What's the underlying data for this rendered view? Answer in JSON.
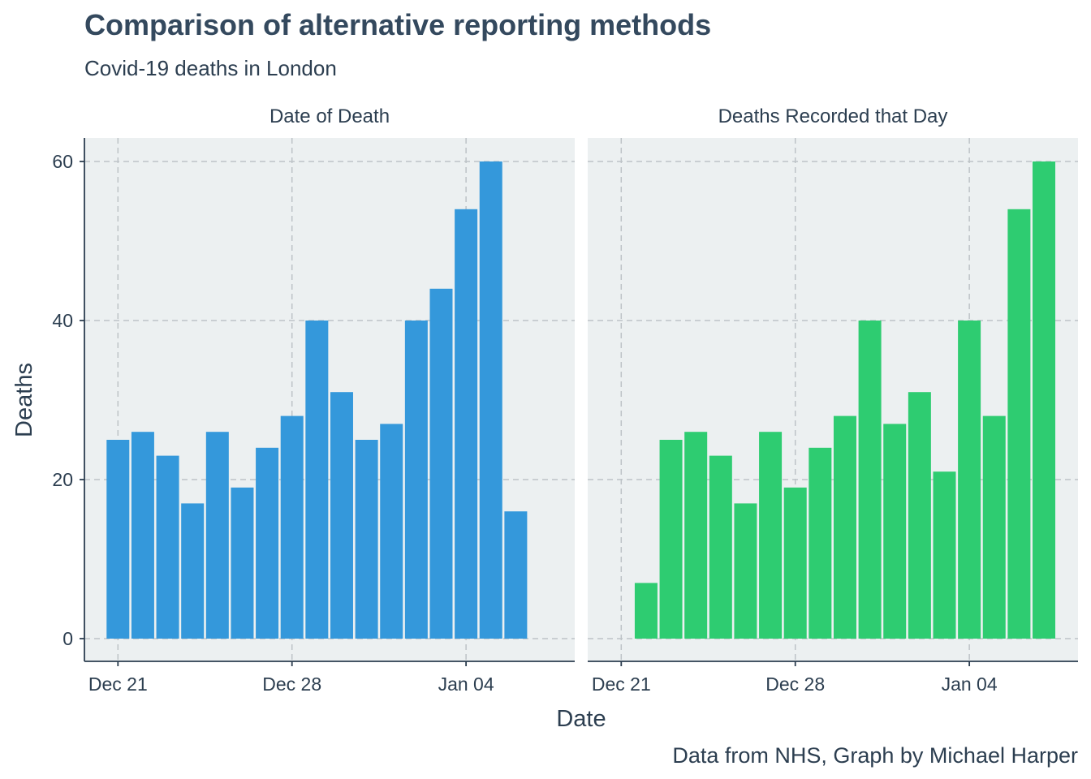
{
  "chart_data": {
    "type": "bar",
    "title": "Comparison of alternative reporting methods",
    "subtitle": "Covid-19 deaths in London",
    "xlabel": "Date",
    "ylabel": "Deaths",
    "caption": "Data from NHS, Graph by Michael Harper",
    "ylim": [
      0,
      60
    ],
    "yticks": [
      0,
      20,
      40,
      60
    ],
    "xlim": [
      "2020-12-20",
      "2021-01-07"
    ],
    "xticks": [
      {
        "date": "2020-12-21",
        "label": "Dec 21"
      },
      {
        "date": "2020-12-28",
        "label": "Dec 28"
      },
      {
        "date": "2021-01-04",
        "label": "Jan 04"
      }
    ],
    "grid": true,
    "legend": "none",
    "panels": [
      {
        "name": "Date of Death",
        "color": "#3498db",
        "x": [
          "2020-12-21",
          "2020-12-22",
          "2020-12-23",
          "2020-12-24",
          "2020-12-25",
          "2020-12-26",
          "2020-12-27",
          "2020-12-28",
          "2020-12-29",
          "2020-12-30",
          "2020-12-31",
          "2021-01-01",
          "2021-01-02",
          "2021-01-03",
          "2021-01-04",
          "2021-01-05",
          "2021-01-06"
        ],
        "values": [
          25,
          26,
          23,
          17,
          26,
          19,
          24,
          28,
          40,
          31,
          25,
          27,
          40,
          44,
          54,
          60,
          16
        ]
      },
      {
        "name": "Deaths Recorded that Day",
        "color": "#2ecc71",
        "x": [
          "2020-12-22",
          "2020-12-23",
          "2020-12-24",
          "2020-12-25",
          "2020-12-26",
          "2020-12-27",
          "2020-12-28",
          "2020-12-29",
          "2020-12-30",
          "2020-12-31",
          "2021-01-01",
          "2021-01-02",
          "2021-01-03",
          "2021-01-04",
          "2021-01-05",
          "2021-01-06",
          "2021-01-07"
        ],
        "values": [
          7,
          25,
          26,
          23,
          17,
          26,
          19,
          24,
          28,
          40,
          27,
          31,
          21,
          40,
          28,
          54,
          60
        ]
      }
    ]
  }
}
